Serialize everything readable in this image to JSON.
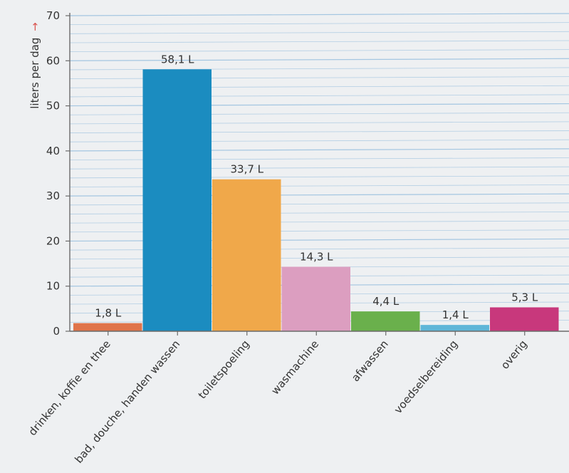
{
  "chart_data": {
    "type": "bar",
    "title": "",
    "xlabel": "",
    "ylabel": "liters per dag",
    "ylabel_arrow": "→",
    "ylim": [
      0,
      70
    ],
    "yticks": [
      0,
      10,
      20,
      30,
      40,
      50,
      60,
      70
    ],
    "categories": [
      "drinken, koffie en thee",
      "bad, douche, handen wassen",
      "toiletspoeling",
      "wasmachine",
      "afwassen",
      "voedselbereiding",
      "overig"
    ],
    "values": [
      1.8,
      58.1,
      33.7,
      14.3,
      4.4,
      1.4,
      5.3
    ],
    "value_labels": [
      "1,8 L",
      "58,1 L",
      "33,7 L",
      "14,3 L",
      "4,4 L",
      "1,4 L",
      "5,3 L"
    ],
    "colors": [
      "#e0744a",
      "#1b8cc0",
      "#f0a84a",
      "#dc9ec0",
      "#6ab04c",
      "#5fb6d8",
      "#c8387c"
    ],
    "grid": true,
    "grid_color": "#9fc3df",
    "axis_color": "#6b6b6b",
    "arrow_color": "#d9534f"
  }
}
